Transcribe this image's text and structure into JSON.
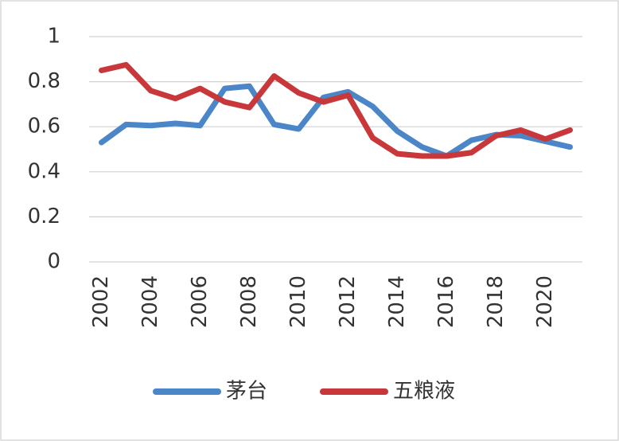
{
  "chart_data": {
    "type": "line",
    "x": [
      2002,
      2003,
      2004,
      2005,
      2006,
      2007,
      2008,
      2009,
      2010,
      2011,
      2012,
      2013,
      2014,
      2015,
      2016,
      2017,
      2018,
      2019,
      2020,
      2021
    ],
    "series": [
      {
        "name": "茅台",
        "color": "#4a86c8",
        "values": [
          0.53,
          0.61,
          0.605,
          0.615,
          0.605,
          0.77,
          0.78,
          0.61,
          0.59,
          0.73,
          0.755,
          0.69,
          0.58,
          0.51,
          0.47,
          0.54,
          0.565,
          0.56,
          0.535,
          0.51
        ]
      },
      {
        "name": "五粮液",
        "color": "#c8373a",
        "values": [
          0.85,
          0.875,
          0.76,
          0.725,
          0.77,
          0.71,
          0.685,
          0.825,
          0.75,
          0.71,
          0.74,
          0.55,
          0.48,
          0.47,
          0.47,
          0.485,
          0.56,
          0.585,
          0.545,
          0.585
        ]
      }
    ],
    "xlim": [
      2001.5,
      2021.5
    ],
    "xticks": [
      2002,
      2004,
      2006,
      2008,
      2010,
      2012,
      2014,
      2016,
      2018,
      2020
    ],
    "ylim": [
      0,
      1
    ],
    "yticks": [
      0,
      0.2,
      0.4,
      0.6,
      0.8,
      1
    ],
    "grid": true,
    "legend": "bottom"
  }
}
